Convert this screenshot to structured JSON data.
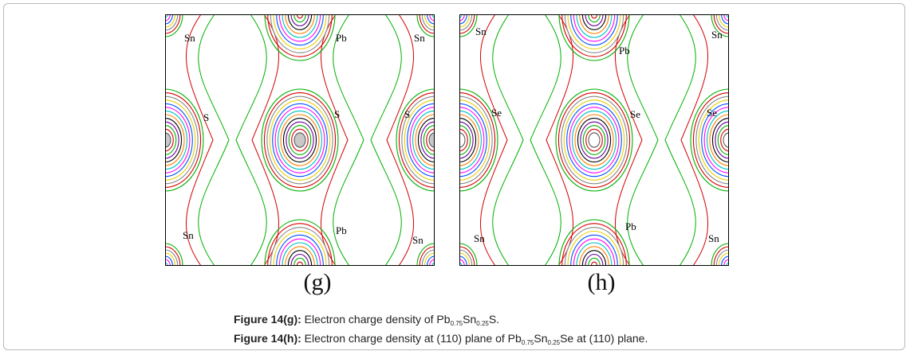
{
  "panels": [
    {
      "id": "g",
      "label": "(g)",
      "atoms": [
        {
          "name": "Sn",
          "pos": "tl"
        },
        {
          "name": "Pb",
          "pos": "tc"
        },
        {
          "name": "Sn",
          "pos": "tr"
        },
        {
          "name": "S",
          "pos": "ml"
        },
        {
          "name": "S",
          "pos": "mc"
        },
        {
          "name": "S",
          "pos": "mr"
        },
        {
          "name": "Sn",
          "pos": "bl"
        },
        {
          "name": "Pb",
          "pos": "bc"
        },
        {
          "name": "Sn",
          "pos": "br"
        }
      ]
    },
    {
      "id": "h",
      "label": "(h)",
      "atoms": [
        {
          "name": "Sn",
          "pos": "tl"
        },
        {
          "name": "Pb",
          "pos": "tc"
        },
        {
          "name": "Sn",
          "pos": "tr"
        },
        {
          "name": "Se",
          "pos": "ml"
        },
        {
          "name": "Se",
          "pos": "mc"
        },
        {
          "name": "Se",
          "pos": "mr"
        },
        {
          "name": "Sn",
          "pos": "bl"
        },
        {
          "name": "Pb",
          "pos": "bc"
        },
        {
          "name": "Sn",
          "pos": "br"
        }
      ]
    }
  ],
  "captions": {
    "g": {
      "lead": "Figure 14(g):",
      "text_before": " Electron charge density of Pb",
      "sub1": "0.75",
      "mid": "Sn",
      "sub2": "0.25",
      "text_after": "S."
    },
    "h": {
      "lead": "Figure 14(h):",
      "text_before": " Electron charge density at (110) plane of Pb",
      "sub1": "0.75",
      "mid": "Sn",
      "sub2": "0.25",
      "text_after": "Se at (110) plane."
    }
  },
  "contour_colors": [
    "#00b000",
    "#d40000",
    "#888888",
    "#e6d000",
    "#0050ff",
    "#ff00ff",
    "#00c0c0",
    "#ff8000",
    "#000000",
    "#6a00a0"
  ]
}
